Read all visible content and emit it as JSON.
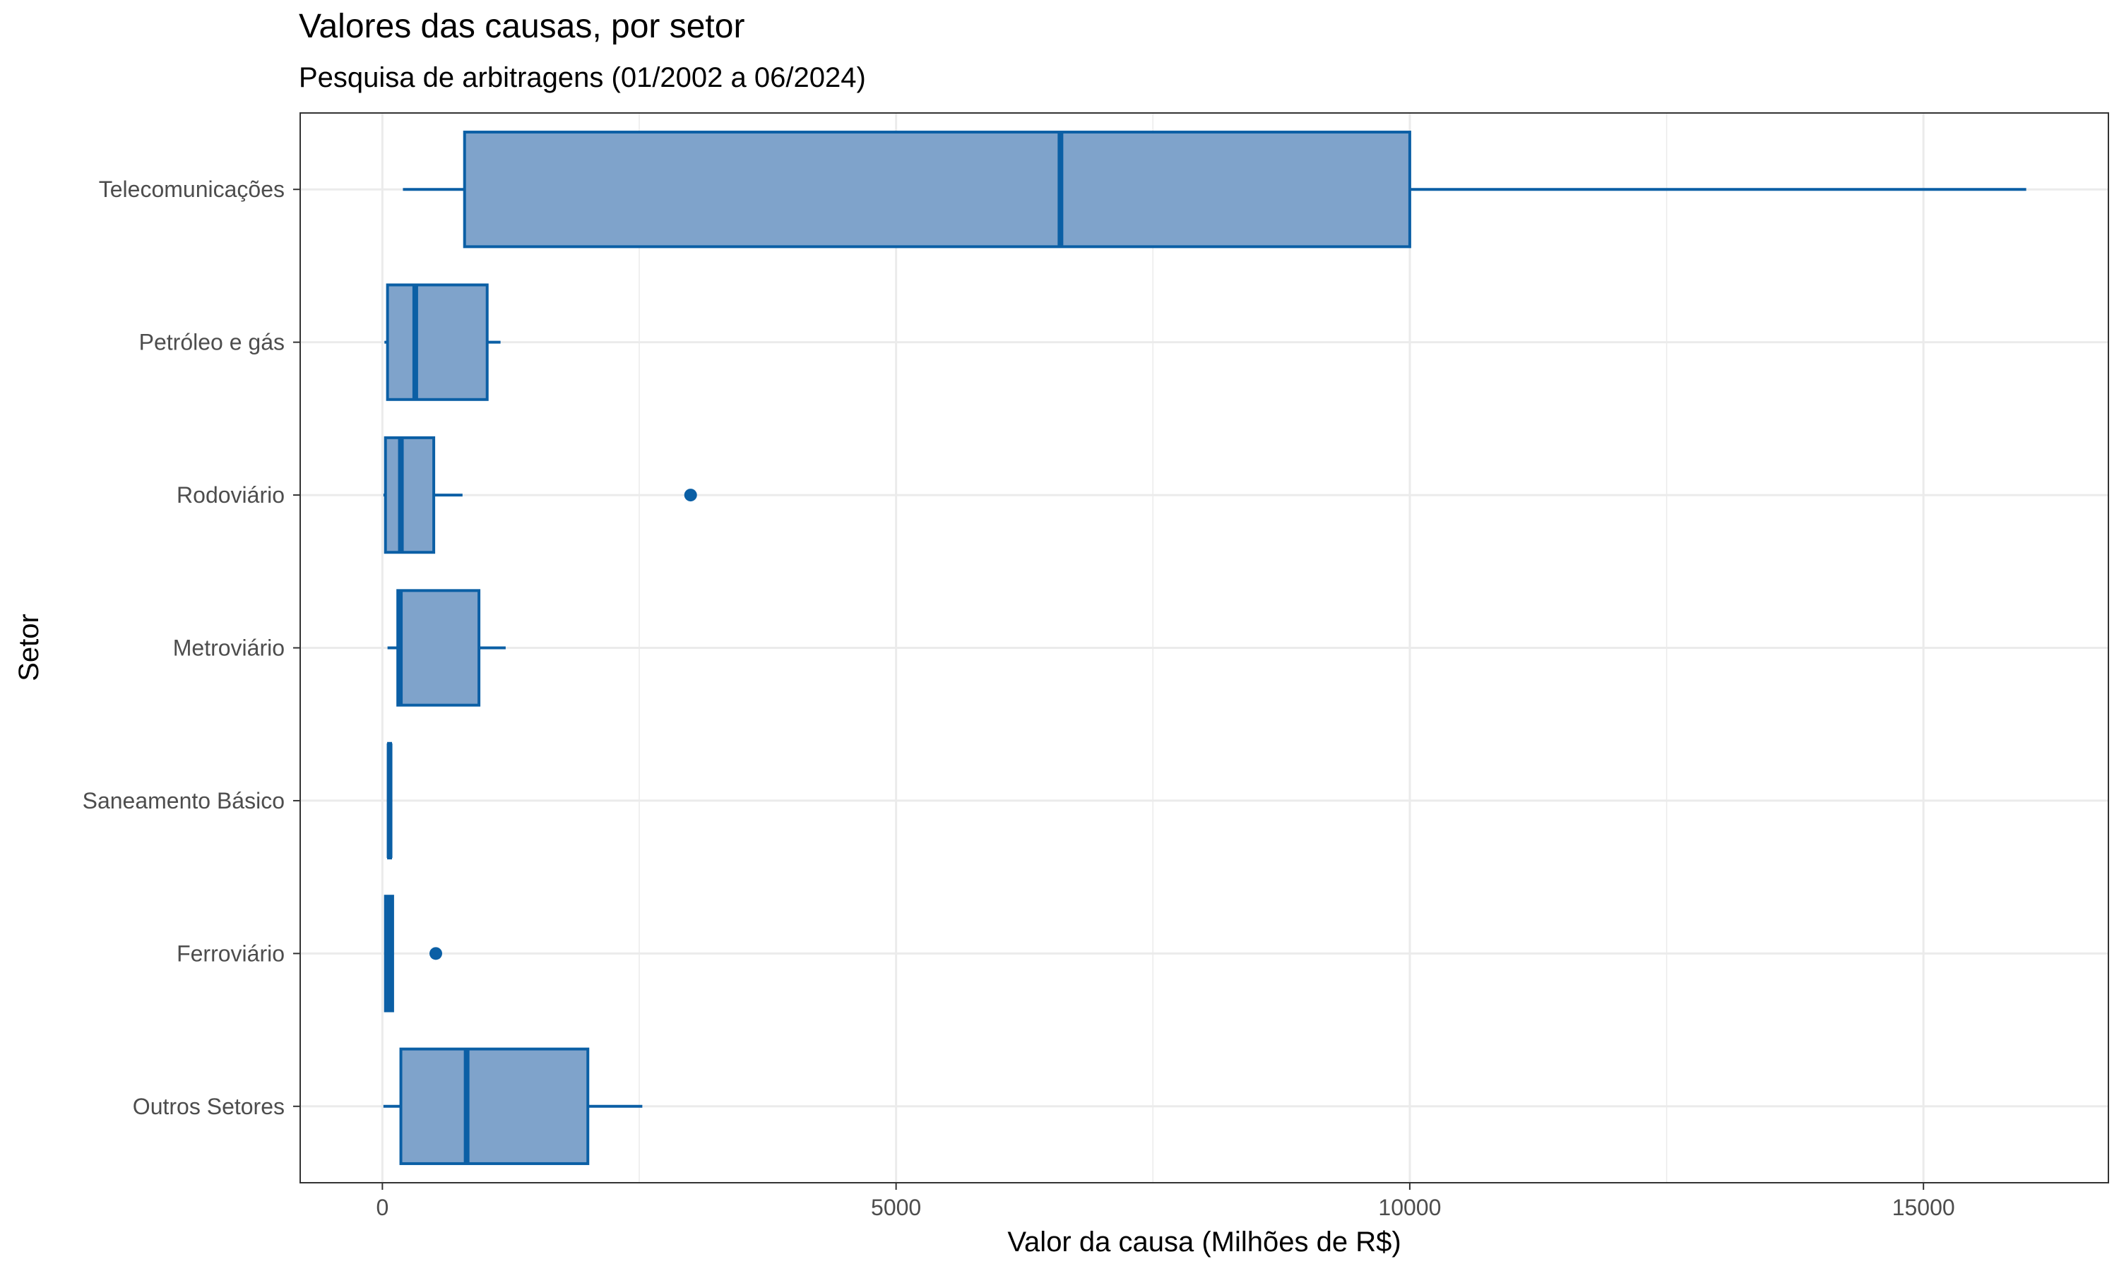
{
  "chart_data": {
    "type": "boxplot",
    "orientation": "horizontal",
    "title": "Valores das causas, por setor",
    "subtitle": "Pesquisa de arbitragens (01/2002 a 06/2024)",
    "xlabel": "Valor da causa (Milhões de R$)",
    "ylabel": "Setor",
    "xlim": [
      -800,
      16800
    ],
    "x_ticks": [
      0,
      5000,
      10000,
      15000
    ],
    "grid": true,
    "colors": {
      "box_fill": "#7fa3cb",
      "box_line": "#0b5fa5",
      "grid": "#ebebeb",
      "panel_border": "#333333"
    },
    "categories": [
      "Telecomunicações",
      "Petróleo e gás",
      "Rodoviário",
      "Metroviário",
      "Saneamento Básico",
      "Ferroviário",
      "Outros Setores"
    ],
    "boxes": [
      {
        "category": "Telecomunicações",
        "whisker_low": 200,
        "q1": 800,
        "median": 6600,
        "q3": 10000,
        "whisker_high": 16000,
        "outliers": []
      },
      {
        "category": "Petróleo e gás",
        "whisker_low": 20,
        "q1": 50,
        "median": 320,
        "q3": 1020,
        "whisker_high": 1150,
        "outliers": []
      },
      {
        "category": "Rodoviário",
        "whisker_low": 10,
        "q1": 30,
        "median": 180,
        "q3": 500,
        "whisker_high": 780,
        "outliers": [
          3000
        ]
      },
      {
        "category": "Metroviário",
        "whisker_low": 50,
        "q1": 150,
        "median": 170,
        "q3": 940,
        "whisker_high": 1200,
        "outliers": []
      },
      {
        "category": "Saneamento Básico",
        "whisker_low": 60,
        "q1": 60,
        "median": 70,
        "q3": 80,
        "whisker_high": 80,
        "outliers": []
      },
      {
        "category": "Ferroviário",
        "whisker_low": 20,
        "q1": 30,
        "median": 70,
        "q3": 100,
        "whisker_high": 100,
        "outliers": [
          520
        ]
      },
      {
        "category": "Outros Setores",
        "whisker_low": 10,
        "q1": 180,
        "median": 820,
        "q3": 2000,
        "whisker_high": 2530,
        "outliers": []
      }
    ]
  }
}
